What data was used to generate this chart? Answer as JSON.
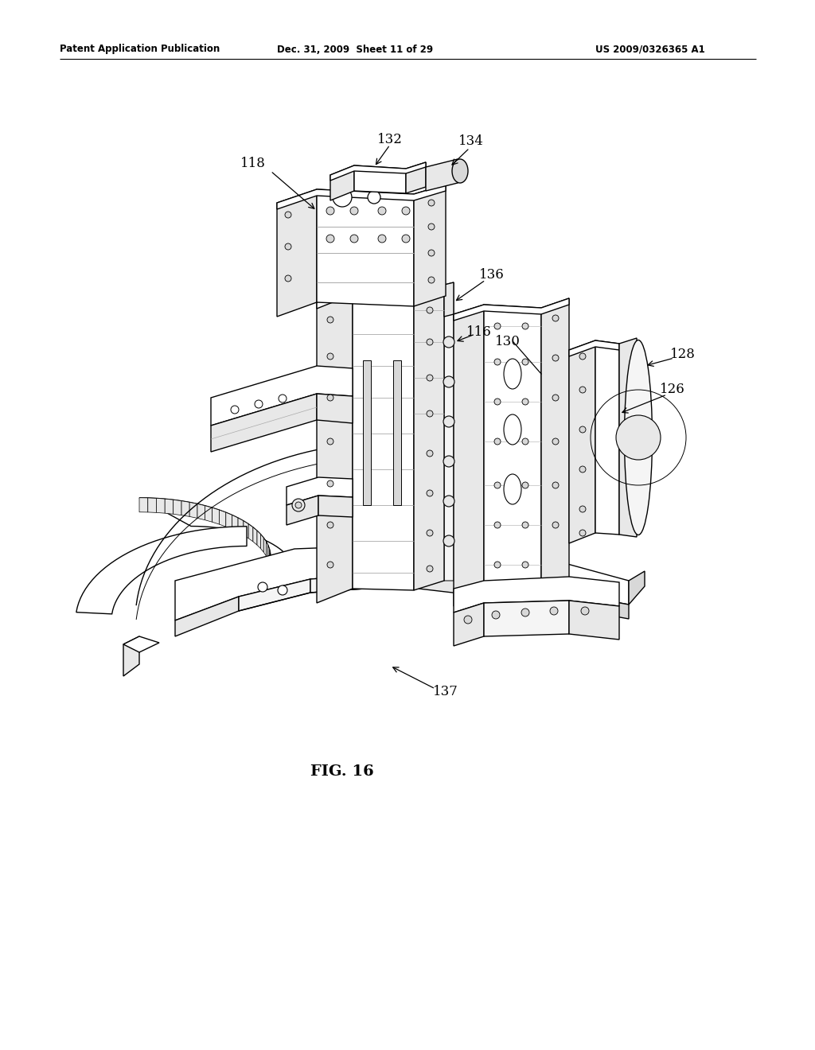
{
  "bg_color": "#ffffff",
  "header_left": "Patent Application Publication",
  "header_mid": "Dec. 31, 2009  Sheet 11 of 29",
  "header_right": "US 2009/0326365 A1",
  "fig_label": "FIG. 16",
  "line_color": "#000000",
  "fill_light": "#f5f5f5",
  "fill_mid": "#e8e8e8",
  "fill_dark": "#d8d8d8",
  "fill_darker": "#c8c8c8"
}
